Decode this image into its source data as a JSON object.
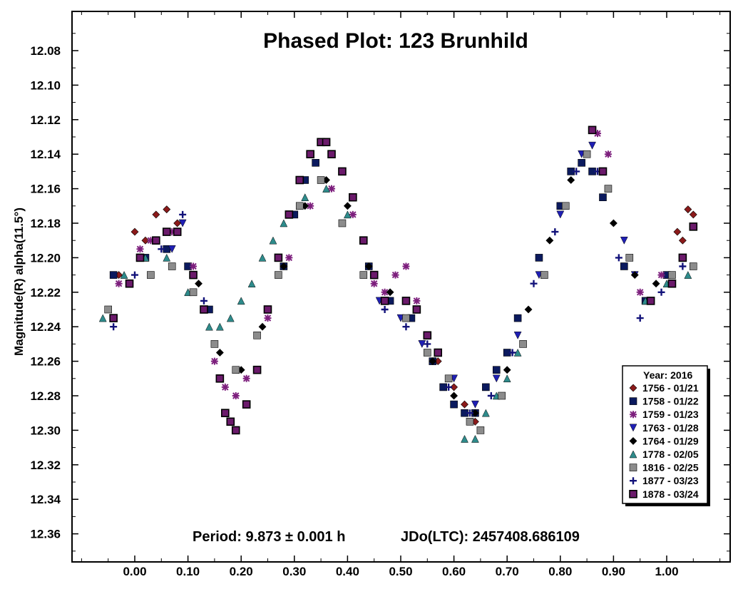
{
  "chart_data": {
    "type": "scatter",
    "title": "Phased Plot: 123 Brunhild",
    "ylabel": "Magnitude(R) alpha(11.5°)",
    "xlabel": "",
    "xlim": [
      -0.12,
      1.12
    ],
    "ylim": [
      12.37,
      12.06
    ],
    "y_inverted": true,
    "grid": false,
    "legend_position": "bottom-right",
    "legend_title": "Year: 2016",
    "x_ticks": [
      "0.00",
      "0.10",
      "0.20",
      "0.30",
      "0.40",
      "0.50",
      "0.60",
      "0.70",
      "0.80",
      "0.90",
      "1.00"
    ],
    "y_ticks": [
      "12.08",
      "12.10",
      "12.12",
      "12.14",
      "12.16",
      "12.18",
      "12.20",
      "12.22",
      "12.24",
      "12.26",
      "12.28",
      "12.30",
      "12.32",
      "12.34",
      "12.36"
    ],
    "period_text": "Period: 9.873 ± 0.001 h",
    "epoch_text": "JDo(LTC): 2457408.686109",
    "series": [
      {
        "name": "1756 - 01/21",
        "marker": "diamond",
        "color": "#8b1a1a",
        "x": [
          -0.03,
          0.0,
          0.02,
          0.04,
          0.06,
          0.08,
          1.02,
          1.03,
          1.04,
          1.05,
          0.55,
          0.57,
          0.6,
          0.62,
          0.64
        ],
        "y": [
          12.21,
          12.185,
          12.19,
          12.175,
          12.172,
          12.18,
          12.185,
          12.19,
          12.172,
          12.175,
          12.245,
          12.26,
          12.275,
          12.285,
          12.295
        ]
      },
      {
        "name": "1758 - 01/22",
        "marker": "square",
        "color": "#0b1a5e",
        "x": [
          -0.04,
          0.02,
          0.06,
          0.1,
          0.14,
          0.28,
          0.3,
          0.32,
          0.34,
          0.44,
          0.48,
          0.52,
          0.56,
          0.58,
          0.6,
          0.62,
          0.64,
          0.66,
          0.68,
          0.7,
          0.72,
          0.76,
          0.8,
          0.82,
          0.84,
          0.86,
          0.88,
          0.92,
          0.96,
          1.0
        ],
        "y": [
          12.21,
          12.2,
          12.195,
          12.205,
          12.23,
          12.205,
          12.175,
          12.155,
          12.145,
          12.205,
          12.225,
          12.235,
          12.26,
          12.275,
          12.285,
          12.29,
          12.29,
          12.275,
          12.265,
          12.255,
          12.235,
          12.2,
          12.17,
          12.15,
          12.145,
          12.15,
          12.165,
          12.205,
          12.225,
          12.21
        ]
      },
      {
        "name": "1759 - 01/23",
        "marker": "asterisk",
        "color": "#7d1f7d",
        "x": [
          -0.03,
          0.01,
          0.03,
          0.07,
          0.11,
          0.15,
          0.17,
          0.19,
          0.21,
          0.25,
          0.29,
          0.33,
          0.37,
          0.41,
          0.45,
          0.47,
          0.49,
          0.51,
          0.53,
          0.87,
          0.89,
          0.95,
          0.99,
          1.03
        ],
        "y": [
          12.215,
          12.195,
          12.19,
          12.185,
          12.205,
          12.26,
          12.275,
          12.28,
          12.27,
          12.235,
          12.2,
          12.17,
          12.16,
          12.175,
          12.215,
          12.22,
          12.21,
          12.205,
          12.225,
          12.128,
          12.14,
          12.22,
          12.21,
          12.2
        ]
      },
      {
        "name": "1763 - 01/28",
        "marker": "triangle-down",
        "color": "#1f1fb4",
        "x": [
          0.07,
          0.09,
          0.46,
          0.5,
          0.54,
          0.6,
          0.64,
          0.68,
          0.72,
          0.76,
          0.8,
          0.84,
          0.86,
          0.92,
          0.94
        ],
        "y": [
          12.195,
          12.18,
          12.225,
          12.235,
          12.25,
          12.27,
          12.285,
          12.27,
          12.245,
          12.21,
          12.175,
          12.14,
          12.135,
          12.19,
          12.21
        ]
      },
      {
        "name": "1764 - 01/29",
        "marker": "diamond",
        "color": "#000000",
        "x": [
          0.12,
          0.16,
          0.2,
          0.24,
          0.28,
          0.32,
          0.36,
          0.4,
          0.44,
          0.48,
          0.56,
          0.6,
          0.64,
          0.7,
          0.74,
          0.78,
          0.82,
          0.9,
          0.94,
          0.98
        ],
        "y": [
          12.215,
          12.255,
          12.265,
          12.24,
          12.205,
          12.17,
          12.155,
          12.17,
          12.205,
          12.22,
          12.26,
          12.28,
          12.29,
          12.265,
          12.23,
          12.19,
          12.155,
          12.18,
          12.21,
          12.215
        ]
      },
      {
        "name": "1778 - 02/05",
        "marker": "triangle-up",
        "color": "#2e8b8b",
        "x": [
          -0.06,
          -0.02,
          0.02,
          0.06,
          0.1,
          0.14,
          0.16,
          0.18,
          0.2,
          0.22,
          0.24,
          0.26,
          0.28,
          0.32,
          0.36,
          0.4,
          0.62,
          0.64,
          0.66,
          0.68,
          0.7,
          0.72,
          0.96,
          1.0,
          1.04
        ],
        "y": [
          12.235,
          12.21,
          12.2,
          12.2,
          12.22,
          12.24,
          12.24,
          12.235,
          12.225,
          12.215,
          12.2,
          12.19,
          12.18,
          12.165,
          12.16,
          12.175,
          12.305,
          12.305,
          12.29,
          12.28,
          12.27,
          12.255,
          12.225,
          12.215,
          12.21
        ]
      },
      {
        "name": "1816 - 02/25",
        "marker": "square",
        "color": "#8c8c8c",
        "x": [
          -0.05,
          -0.01,
          0.03,
          0.07,
          0.11,
          0.15,
          0.19,
          0.23,
          0.27,
          0.31,
          0.35,
          0.39,
          0.43,
          0.47,
          0.51,
          0.55,
          0.59,
          0.63,
          0.65,
          0.69,
          0.73,
          0.77,
          0.81,
          0.85,
          0.89,
          0.93,
          0.97,
          1.01,
          1.05
        ],
        "y": [
          12.23,
          12.215,
          12.21,
          12.205,
          12.22,
          12.25,
          12.265,
          12.245,
          12.21,
          12.17,
          12.155,
          12.18,
          12.21,
          12.225,
          12.235,
          12.255,
          12.27,
          12.295,
          12.3,
          12.28,
          12.25,
          12.21,
          12.17,
          12.14,
          12.16,
          12.2,
          12.225,
          12.21,
          12.205
        ]
      },
      {
        "name": "1877 - 03/23",
        "marker": "plus",
        "color": "#12127a",
        "x": [
          -0.04,
          0.0,
          0.05,
          0.09,
          0.13,
          0.47,
          0.51,
          0.55,
          0.59,
          0.63,
          0.67,
          0.71,
          0.75,
          0.79,
          0.83,
          0.87,
          0.91,
          0.95,
          0.99,
          1.03
        ],
        "y": [
          12.24,
          12.21,
          12.195,
          12.175,
          12.225,
          12.23,
          12.24,
          12.25,
          12.275,
          12.29,
          12.28,
          12.255,
          12.215,
          12.185,
          12.15,
          12.15,
          12.2,
          12.235,
          12.22,
          12.205
        ]
      },
      {
        "name": "1878 - 03/24",
        "marker": "square-outline",
        "color": "#6b1a6b",
        "x": [
          -0.04,
          -0.01,
          0.01,
          0.04,
          0.06,
          0.08,
          0.11,
          0.13,
          0.16,
          0.17,
          0.18,
          0.19,
          0.21,
          0.23,
          0.25,
          0.27,
          0.29,
          0.31,
          0.33,
          0.35,
          0.36,
          0.37,
          0.39,
          0.41,
          0.43,
          0.45,
          0.47,
          0.51,
          0.53,
          0.55,
          0.57,
          0.86,
          0.88,
          0.97,
          1.01,
          1.03,
          1.05
        ],
        "y": [
          12.235,
          12.215,
          12.2,
          12.19,
          12.185,
          12.185,
          12.21,
          12.23,
          12.27,
          12.29,
          12.295,
          12.3,
          12.285,
          12.265,
          12.23,
          12.2,
          12.175,
          12.155,
          12.14,
          12.133,
          12.133,
          12.14,
          12.15,
          12.165,
          12.19,
          12.21,
          12.225,
          12.225,
          12.23,
          12.245,
          12.255,
          12.126,
          12.15,
          12.225,
          12.215,
          12.2,
          12.182
        ]
      }
    ]
  },
  "legend": {
    "title": "Year: 2016",
    "entries": [
      "1756 - 01/21",
      "1758 - 01/22",
      "1759 - 01/23",
      "1763 - 01/28",
      "1764 - 01/29",
      "1778 - 02/05",
      "1816 - 02/25",
      "1877 - 03/23",
      "1878 - 03/24"
    ]
  }
}
